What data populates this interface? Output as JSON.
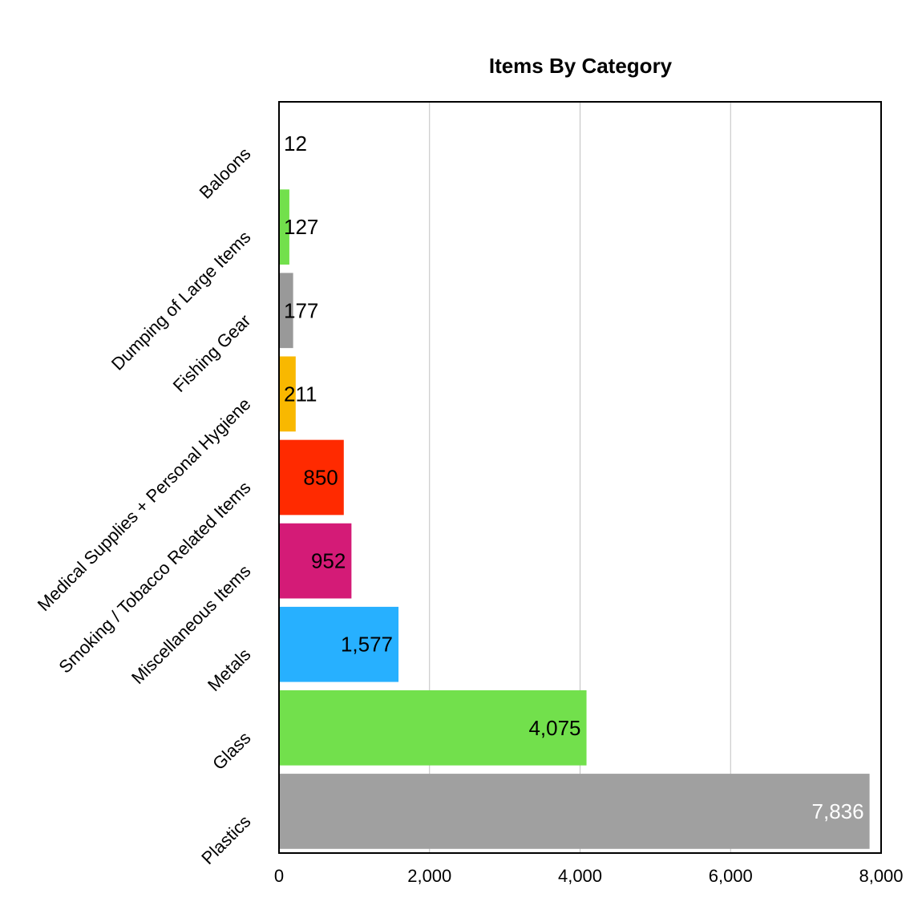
{
  "chart_data": {
    "type": "bar",
    "orientation": "horizontal",
    "title": "Items By Category",
    "xlabel": "",
    "ylabel": "",
    "xlim": [
      0,
      8000
    ],
    "x_ticks": [
      0,
      2000,
      4000,
      6000,
      8000
    ],
    "x_tick_labels": [
      "0",
      "2,000",
      "4,000",
      "6,000",
      "8,000"
    ],
    "grid": "vertical",
    "legend": "none",
    "categories": [
      "Baloons",
      "Dumping of Large Items",
      "Fishing Gear",
      "Medical Supplies + Personal Hygiene",
      "Smoking / Tobacco Related Items",
      "Miscellaneous Items",
      "Metals",
      "Glass",
      "Plastics"
    ],
    "values": [
      12,
      127,
      177,
      211,
      850,
      952,
      1577,
      4075,
      7836
    ],
    "value_labels": [
      "12",
      "127",
      "177",
      "211",
      "850",
      "952",
      "1,577",
      "4,075",
      "7,836"
    ],
    "colors": [
      "#ffffff",
      "#72e04c",
      "#999999",
      "#f9b800",
      "#ff2a00",
      "#d41b77",
      "#27b0ff",
      "#72e04c",
      "#a0a0a0"
    ],
    "label_colors": [
      "#000000",
      "#000000",
      "#000000",
      "#000000",
      "#000000",
      "#000000",
      "#000000",
      "#000000",
      "#ffffff"
    ]
  }
}
